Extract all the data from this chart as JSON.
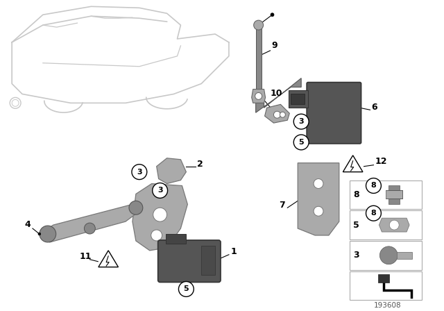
{
  "bg_color": "#ffffff",
  "line_color": "#000000",
  "part_color_dark": "#555555",
  "part_color_mid": "#888888",
  "part_color_light": "#aaaaaa",
  "car_outline_color": "#c8c8c8",
  "diagram_id": "193608"
}
